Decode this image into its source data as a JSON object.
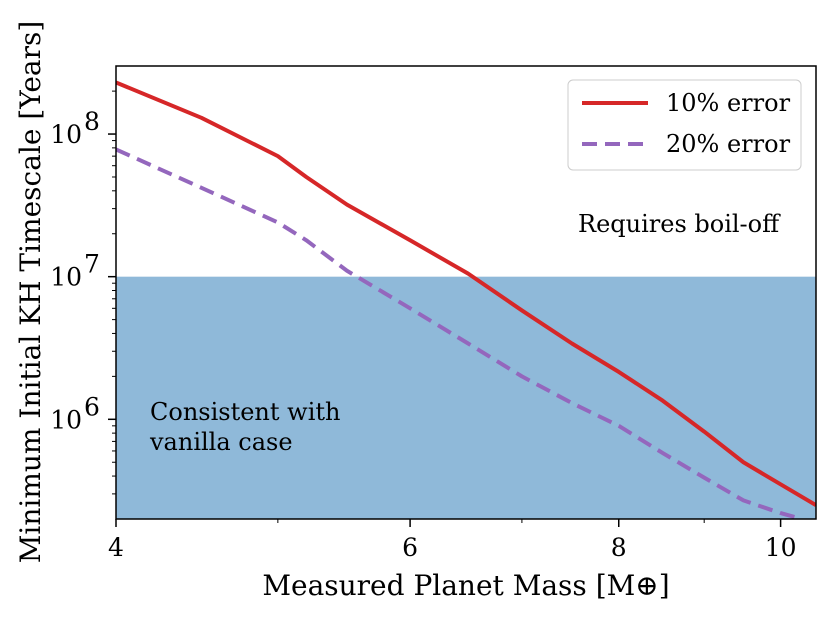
{
  "chart_data": {
    "type": "line",
    "title": "",
    "xlabel": "Measured Planet Mass [M⊕]",
    "ylabel": "Minimum Initial KH Timescale [Years]",
    "xscale": "log",
    "yscale": "log",
    "xlim": [
      4,
      10.5
    ],
    "ylim": [
      200000,
      300000000
    ],
    "x_ticks": [
      {
        "value": 4,
        "label": "4"
      },
      {
        "value": 6,
        "label": "6"
      },
      {
        "value": 8,
        "label": "8"
      },
      {
        "value": 10,
        "label": "10"
      }
    ],
    "y_ticks": [
      {
        "value": 1000000,
        "base": "10",
        "exp": "6"
      },
      {
        "value": 10000000,
        "base": "10",
        "exp": "7"
      },
      {
        "value": 100000000,
        "base": "10",
        "exp": "8"
      }
    ],
    "grid": false,
    "shaded_region": {
      "y_from": 200000,
      "y_to": 10000000,
      "color": "#8fb9d9",
      "label_lines": [
        "Consistent with",
        "vanilla case"
      ]
    },
    "annotation_above": "Requires boil-off",
    "legend_position": "top-right",
    "series": [
      {
        "name": "10% error",
        "color": "#d62728",
        "style": "solid",
        "x": [
          4.0,
          4.5,
          5.0,
          5.2,
          5.5,
          6.0,
          6.5,
          7.0,
          7.5,
          8.0,
          8.5,
          9.0,
          9.5,
          10.0,
          10.5
        ],
        "y": [
          230000000,
          130000000,
          70000000,
          50000000,
          32000000,
          18000000,
          10500000,
          5800000,
          3400000,
          2150000,
          1350000,
          820000,
          500000,
          350000,
          250000
        ]
      },
      {
        "name": "20% error",
        "color": "#9467bd",
        "style": "dashed",
        "x": [
          4.0,
          4.5,
          5.0,
          5.2,
          5.5,
          6.0,
          6.5,
          7.0,
          7.5,
          8.0,
          8.5,
          9.0,
          9.5,
          10.0,
          10.3
        ],
        "y": [
          78000000,
          42000000,
          24000000,
          18000000,
          11000000,
          6000000,
          3400000,
          2000000,
          1300000,
          900000,
          580000,
          390000,
          270000,
          220000,
          200000
        ]
      }
    ]
  }
}
